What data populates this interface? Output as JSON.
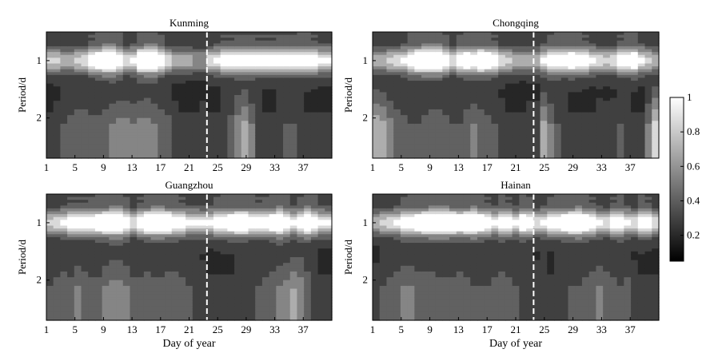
{
  "chart_data": [
    {
      "type": "heatmap",
      "title": "Kunming",
      "xlabel": "",
      "ylabel": "Period/d",
      "xticks": [
        "1",
        "5",
        "9",
        "13",
        "17",
        "21",
        "25",
        "29",
        "33",
        "37"
      ],
      "yticks": [
        "1",
        "2"
      ],
      "xlim": [
        1,
        41
      ],
      "ylim": [
        0.5,
        2.7
      ],
      "divider_day": 23.5,
      "period1_band_strength": [
        0.55,
        0.55,
        0.5,
        0.5,
        0.55,
        0.6,
        0.75,
        0.9,
        1.0,
        1.0,
        0.85,
        0.6,
        0.7,
        0.95,
        1.0,
        1.0,
        0.8,
        0.6,
        0.5,
        0.5,
        0.45,
        0.4,
        0.4,
        0.6,
        0.7,
        0.75,
        0.75,
        0.8,
        0.8,
        0.8,
        0.75,
        0.75,
        0.75,
        0.8,
        0.8,
        0.8,
        0.85,
        0.85,
        0.75,
        0.7,
        0.7
      ],
      "low_frequency_strength": [
        0.15,
        0.2,
        0.25,
        0.3,
        0.35,
        0.35,
        0.3,
        0.3,
        0.35,
        0.4,
        0.45,
        0.45,
        0.4,
        0.45,
        0.45,
        0.4,
        0.35,
        0.3,
        0.2,
        0.15,
        0.15,
        0.15,
        0.2,
        0.15,
        0.15,
        0.2,
        0.3,
        0.5,
        0.6,
        0.4,
        0.2,
        0.15,
        0.15,
        0.2,
        0.25,
        0.25,
        0.2,
        0.15,
        0.15,
        0.15,
        0.15
      ]
    },
    {
      "type": "heatmap",
      "title": "Chongqing",
      "xlabel": "",
      "ylabel": "Period/d",
      "xticks": [
        "1",
        "5",
        "9",
        "13",
        "17",
        "21",
        "25",
        "29",
        "33",
        "37"
      ],
      "yticks": [
        "1",
        "2"
      ],
      "xlim": [
        1,
        41
      ],
      "ylim": [
        0.5,
        2.7
      ],
      "divider_day": 23.5,
      "period1_band_strength": [
        0.45,
        0.5,
        0.55,
        0.6,
        0.7,
        0.85,
        0.95,
        1.0,
        1.0,
        1.0,
        0.8,
        0.6,
        0.8,
        0.9,
        0.85,
        0.95,
        0.9,
        0.75,
        0.6,
        0.55,
        0.5,
        0.45,
        0.45,
        0.5,
        0.7,
        0.8,
        0.85,
        0.85,
        0.9,
        0.85,
        0.75,
        0.7,
        0.6,
        0.55,
        0.6,
        0.75,
        0.85,
        0.9,
        0.7,
        0.55,
        0.5
      ],
      "low_frequency_strength": [
        0.7,
        0.6,
        0.45,
        0.35,
        0.3,
        0.25,
        0.25,
        0.3,
        0.35,
        0.35,
        0.3,
        0.25,
        0.25,
        0.35,
        0.4,
        0.35,
        0.3,
        0.25,
        0.2,
        0.15,
        0.15,
        0.15,
        0.2,
        0.2,
        0.6,
        0.4,
        0.25,
        0.2,
        0.15,
        0.15,
        0.15,
        0.15,
        0.2,
        0.2,
        0.2,
        0.25,
        0.2,
        0.15,
        0.15,
        0.4,
        0.8
      ]
    },
    {
      "type": "heatmap",
      "title": "Guangzhou",
      "xlabel": "Day of year",
      "ylabel": "Period/d",
      "xticks": [
        "1",
        "5",
        "9",
        "13",
        "17",
        "21",
        "25",
        "29",
        "33",
        "37"
      ],
      "yticks": [
        "1",
        "2"
      ],
      "xlim": [
        1,
        41
      ],
      "ylim": [
        0.5,
        2.7
      ],
      "divider_day": 23.5,
      "period1_band_strength": [
        0.55,
        0.6,
        0.7,
        0.75,
        0.75,
        0.75,
        0.8,
        0.9,
        0.95,
        1.0,
        1.0,
        0.8,
        0.6,
        0.75,
        0.95,
        1.0,
        1.0,
        0.95,
        0.85,
        0.75,
        0.7,
        0.7,
        0.65,
        0.7,
        0.8,
        0.85,
        0.9,
        0.95,
        0.95,
        0.85,
        0.75,
        0.8,
        0.9,
        1.0,
        0.85,
        0.7,
        0.8,
        1.0,
        0.85,
        0.7,
        0.65
      ],
      "low_frequency_strength": [
        0.25,
        0.3,
        0.35,
        0.3,
        0.4,
        0.35,
        0.3,
        0.3,
        0.4,
        0.45,
        0.45,
        0.4,
        0.3,
        0.3,
        0.35,
        0.3,
        0.3,
        0.35,
        0.35,
        0.3,
        0.25,
        0.2,
        0.2,
        0.15,
        0.15,
        0.15,
        0.15,
        0.2,
        0.2,
        0.2,
        0.25,
        0.3,
        0.35,
        0.4,
        0.45,
        0.55,
        0.5,
        0.35,
        0.2,
        0.15,
        0.15
      ]
    },
    {
      "type": "heatmap",
      "title": "Hainan",
      "xlabel": "Day of year",
      "ylabel": "Period/d",
      "xticks": [
        "1",
        "5",
        "9",
        "13",
        "17",
        "21",
        "25",
        "29",
        "33",
        "37"
      ],
      "yticks": [
        "1",
        "2"
      ],
      "xlim": [
        1,
        41
      ],
      "ylim": [
        0.5,
        2.7
      ],
      "divider_day": 23.5,
      "period1_band_strength": [
        0.5,
        0.55,
        0.6,
        0.7,
        0.8,
        0.85,
        0.9,
        0.95,
        1.0,
        1.0,
        1.0,
        0.95,
        0.9,
        0.95,
        1.0,
        0.9,
        0.75,
        0.7,
        0.85,
        0.75,
        0.65,
        0.9,
        0.8,
        0.6,
        0.7,
        0.8,
        0.85,
        0.9,
        0.95,
        1.0,
        0.9,
        0.75,
        0.65,
        0.6,
        0.75,
        0.85,
        0.7,
        0.6,
        0.85,
        0.75,
        0.6
      ],
      "low_frequency_strength": [
        0.2,
        0.25,
        0.3,
        0.35,
        0.4,
        0.4,
        0.35,
        0.35,
        0.35,
        0.3,
        0.3,
        0.3,
        0.35,
        0.3,
        0.25,
        0.25,
        0.25,
        0.3,
        0.35,
        0.3,
        0.25,
        0.2,
        0.2,
        0.2,
        0.2,
        0.15,
        0.2,
        0.2,
        0.25,
        0.25,
        0.3,
        0.35,
        0.4,
        0.35,
        0.3,
        0.25,
        0.3,
        0.2,
        0.15,
        0.15,
        0.15
      ]
    }
  ],
  "colorbar": {
    "ticks": [
      "0.2",
      "0.4",
      "0.6",
      "0.8",
      "1"
    ],
    "min": 0.05,
    "max": 1.0,
    "colormap": "gray"
  }
}
